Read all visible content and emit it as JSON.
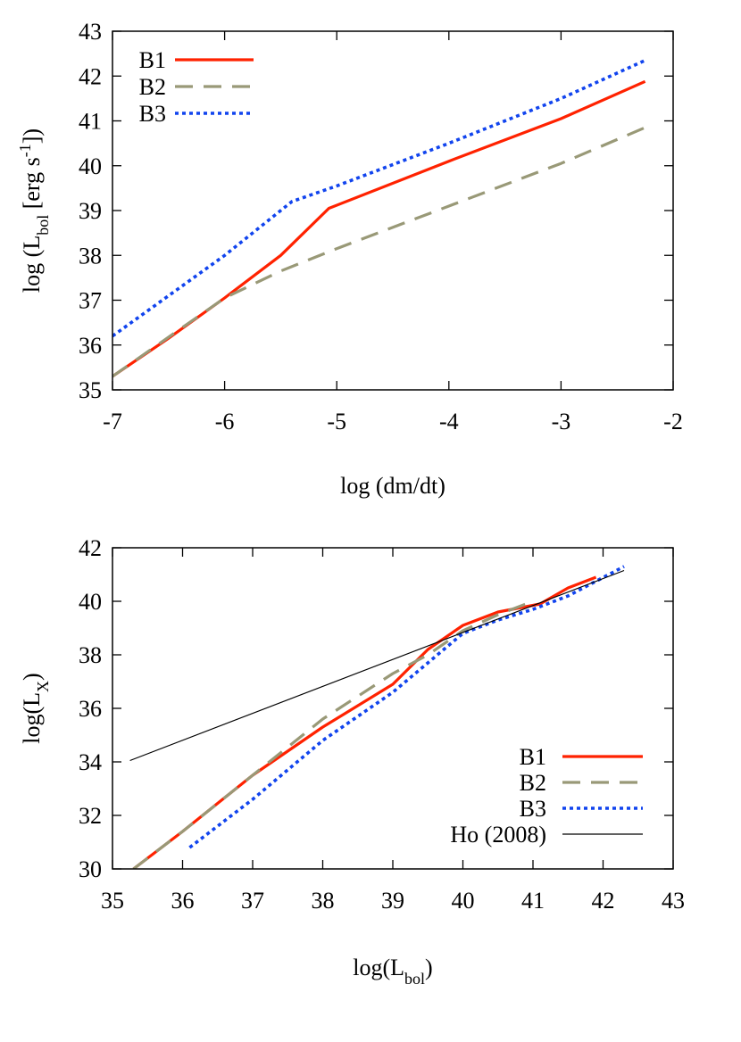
{
  "chart_data": [
    {
      "type": "line",
      "xlabel": "log (dm/dt)",
      "ylabel": {
        "pre": "log (L",
        "sub": "bol",
        "mid": " [erg s",
        "sup": "-1",
        "post": "])"
      },
      "xlim": [
        -7,
        -2
      ],
      "ylim": [
        35,
        43
      ],
      "xticks": [
        -7,
        -6,
        -5,
        -4,
        -3,
        -2
      ],
      "yticks": [
        35,
        36,
        37,
        38,
        39,
        40,
        41,
        42,
        43
      ],
      "grid": false,
      "legend_position": "top-left",
      "series": [
        {
          "name": "B1",
          "color": "#ff2200",
          "dash": "solid",
          "x": [
            -7.0,
            -6.5,
            -6.0,
            -5.5,
            -5.07,
            -4.0,
            -3.0,
            -2.25
          ],
          "y": [
            35.3,
            36.15,
            37.05,
            38.0,
            39.05,
            40.1,
            41.05,
            41.88
          ]
        },
        {
          "name": "B2",
          "color": "#999977",
          "dash": "dashed",
          "x": [
            -7.0,
            -6.0,
            -5.5,
            -5.0,
            -4.0,
            -3.0,
            -2.25
          ],
          "y": [
            35.3,
            37.05,
            37.65,
            38.15,
            39.1,
            40.05,
            40.85
          ]
        },
        {
          "name": "B3",
          "color": "#1144ee",
          "dash": "dotted",
          "x": [
            -7.0,
            -6.0,
            -5.4,
            -5.0,
            -4.0,
            -3.0,
            -2.25
          ],
          "y": [
            36.2,
            38.0,
            39.2,
            39.55,
            40.5,
            41.5,
            42.35
          ]
        }
      ]
    },
    {
      "type": "line",
      "xlabel": {
        "pre": "log(L",
        "sub": "bol",
        "post": ")"
      },
      "ylabel": {
        "pre": "log(L",
        "sub": "X",
        "post": ")"
      },
      "xlim": [
        35,
        43
      ],
      "ylim": [
        30,
        42
      ],
      "xticks": [
        35,
        36,
        37,
        38,
        39,
        40,
        41,
        42,
        43
      ],
      "yticks": [
        30,
        32,
        34,
        36,
        38,
        40,
        42
      ],
      "grid": false,
      "legend_position": "bottom-right",
      "series": [
        {
          "name": "B1",
          "color": "#ff2200",
          "dash": "solid",
          "x": [
            35.3,
            36.0,
            37.0,
            38.0,
            39.0,
            39.5,
            40.0,
            40.5,
            41.1,
            41.5,
            41.9
          ],
          "y": [
            30.0,
            31.4,
            33.5,
            35.3,
            36.9,
            38.2,
            39.1,
            39.6,
            39.9,
            40.5,
            40.9
          ]
        },
        {
          "name": "B2",
          "color": "#999977",
          "dash": "dashed",
          "x": [
            35.3,
            36.0,
            37.0,
            38.0,
            39.0,
            39.5,
            40.0,
            40.5,
            40.9
          ],
          "y": [
            30.0,
            31.4,
            33.5,
            35.6,
            37.3,
            38.0,
            38.9,
            39.5,
            39.9
          ]
        },
        {
          "name": "B3",
          "color": "#1144ee",
          "dash": "dotted",
          "x": [
            36.1,
            37.0,
            38.0,
            39.0,
            39.5,
            40.0,
            40.5,
            41.0,
            41.5,
            42.3
          ],
          "y": [
            30.8,
            32.6,
            34.8,
            36.6,
            37.7,
            38.8,
            39.3,
            39.7,
            40.2,
            41.3
          ]
        },
        {
          "name": "Ho (2008)",
          "color": "#000000",
          "dash": "thin",
          "x": [
            35.25,
            42.3
          ],
          "y": [
            34.05,
            41.15
          ]
        }
      ]
    }
  ]
}
